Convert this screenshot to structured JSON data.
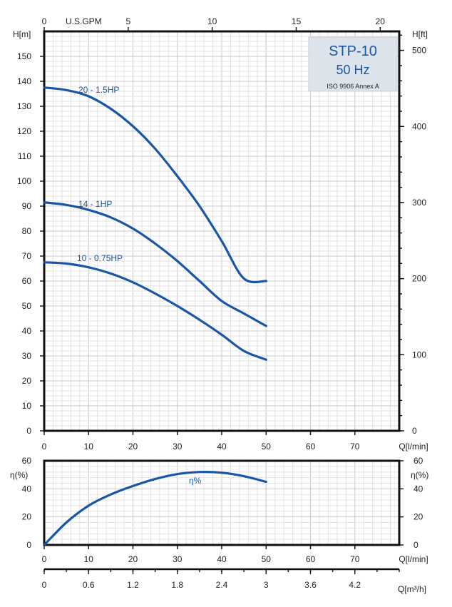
{
  "title_box": {
    "model": "STP-10",
    "frequency": "50 Hz",
    "standard": "ISO 9906 Annex A"
  },
  "colors": {
    "curve": "#1a56a8",
    "frame": "#111111",
    "title_box_fill": "#dde3ea",
    "grid_major": "#c8c8c8",
    "grid_minor": "#e3e3e3"
  },
  "chart_data": [
    {
      "type": "line",
      "xlabel": "Q[l/min]",
      "ylabel_left": "H[m]",
      "ylabel_right": "H[ft]",
      "top_axis_label": "U.S.GPM",
      "xlim": [
        0,
        80
      ],
      "ylim": [
        0,
        160
      ],
      "grid": true,
      "x_ticks": [
        0,
        10,
        20,
        30,
        40,
        50,
        60,
        70
      ],
      "y_ticks": [
        0,
        10,
        20,
        30,
        40,
        50,
        60,
        70,
        80,
        90,
        100,
        110,
        120,
        130,
        140,
        150
      ],
      "top_ticks": [
        "0",
        "5",
        "10",
        "15",
        "20"
      ],
      "top_tick_values": [
        0,
        5,
        10,
        15,
        20
      ],
      "right_ticks": [
        "0",
        "100",
        "200",
        "300",
        "400",
        "500"
      ],
      "right_tick_values": [
        0,
        100,
        200,
        300,
        400,
        500
      ],
      "series": [
        {
          "name": "20 - 1.5HP",
          "x": [
            0,
            5,
            10,
            15,
            20,
            25,
            30,
            35,
            40,
            45,
            50
          ],
          "y": [
            137.5,
            136.5,
            134,
            129,
            122,
            113,
            102,
            90,
            76,
            61,
            60
          ]
        },
        {
          "name": "14 - 1HP",
          "x": [
            0,
            5,
            10,
            15,
            20,
            25,
            30,
            35,
            40,
            45,
            50
          ],
          "y": [
            91.5,
            90.5,
            88.5,
            85.5,
            81,
            75,
            68,
            60,
            52,
            47,
            42
          ]
        },
        {
          "name": "10 - 0.75HP",
          "x": [
            0,
            5,
            10,
            15,
            20,
            25,
            30,
            35,
            40,
            45,
            50
          ],
          "y": [
            67.5,
            67,
            65.5,
            63,
            59.5,
            55,
            50,
            44.5,
            38.5,
            32,
            28.5
          ]
        }
      ],
      "label_positions_note": ""
    },
    {
      "type": "line",
      "xlabel": "Q[l/min]",
      "ylabel_left": "η(%)",
      "ylabel_right": "η(%)",
      "xlim": [
        0,
        80
      ],
      "ylim": [
        0,
        60
      ],
      "grid": true,
      "x_ticks": [
        0,
        10,
        20,
        30,
        40,
        50,
        60,
        70
      ],
      "y_ticks": [
        0,
        20,
        40,
        60
      ],
      "series": [
        {
          "name": "η%",
          "x": [
            0,
            5,
            10,
            15,
            20,
            25,
            30,
            35,
            40,
            45,
            50
          ],
          "y": [
            0,
            16,
            28,
            36,
            42,
            47,
            50.5,
            52,
            51.5,
            49,
            45
          ]
        }
      ]
    },
    {
      "type": "axis",
      "xlabel": "Q[m³/h]",
      "x_ticks": [
        "0",
        "0.6",
        "1.2",
        "1.8",
        "2.4",
        "3",
        "3.6",
        "4.2"
      ],
      "x_tick_values": [
        0,
        0.6,
        1.2,
        1.8,
        2.4,
        3,
        3.6,
        4.2
      ]
    }
  ]
}
